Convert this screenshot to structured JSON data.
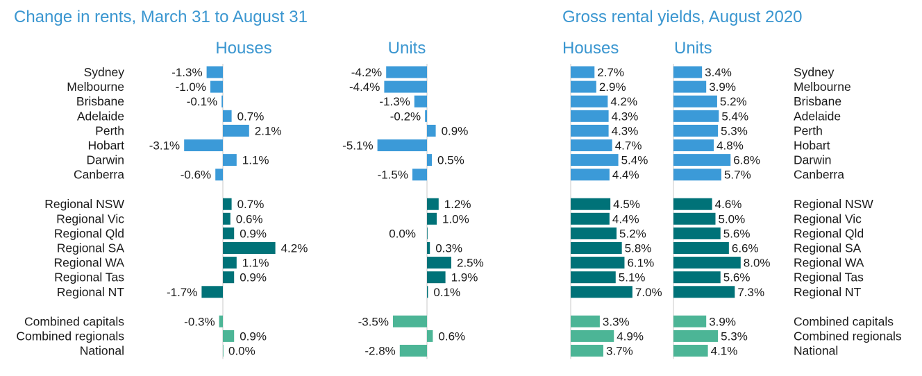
{
  "colors": {
    "capital": "#3b9ad8",
    "regional": "#007278",
    "combined": "#4cb596",
    "title": "#3a96d0",
    "axis": "#c9c9c9"
  },
  "labels": {
    "change_title": "Change in rents, March 31 to August 31",
    "yield_title": "Gross rental yields, August 2020",
    "change_houses": "Houses",
    "change_units": "Units",
    "yield_houses": "Houses",
    "yield_units": "Units"
  },
  "chart_data": [
    {
      "type": "bar",
      "orientation": "horizontal",
      "title": "Change in rents, March 31 to August 31",
      "categories": [
        "Sydney",
        "Melbourne",
        "Brisbane",
        "Adelaide",
        "Perth",
        "Hobart",
        "Darwin",
        "Canberra",
        "Regional NSW",
        "Regional Vic",
        "Regional Qld",
        "Regional SA",
        "Regional WA",
        "Regional Tas",
        "Regional NT",
        "Combined capitals",
        "Combined regionals",
        "National"
      ],
      "groups": [
        "capital",
        "capital",
        "capital",
        "capital",
        "capital",
        "capital",
        "capital",
        "capital",
        "regional",
        "regional",
        "regional",
        "regional",
        "regional",
        "regional",
        "regional",
        "combined",
        "combined",
        "combined"
      ],
      "series": [
        {
          "name": "Houses",
          "values": [
            -1.3,
            -1.0,
            -0.1,
            0.7,
            2.1,
            -3.1,
            1.1,
            -0.6,
            0.7,
            0.6,
            0.9,
            4.2,
            1.1,
            0.9,
            -1.7,
            -0.3,
            0.9,
            0.0
          ],
          "labels": [
            "-1.3%",
            "-1.0%",
            "-0.1%",
            "0.7%",
            "2.1%",
            "-3.1%",
            "1.1%",
            "-0.6%",
            "0.7%",
            "0.6%",
            "0.9%",
            "4.2%",
            "1.1%",
            "0.9%",
            "-1.7%",
            "-0.3%",
            "0.9%",
            "0.0%"
          ]
        },
        {
          "name": "Units",
          "values": [
            -4.2,
            -4.4,
            -1.3,
            -0.2,
            0.9,
            -5.1,
            0.5,
            -1.5,
            1.2,
            1.0,
            0.0,
            0.3,
            2.5,
            1.9,
            0.1,
            -3.5,
            0.6,
            -2.8
          ],
          "labels": [
            "-4.2%",
            "-4.4%",
            "-1.3%",
            "-0.2%",
            "0.9%",
            "-5.1%",
            "0.5%",
            "-1.5%",
            "1.2%",
            "1.0%",
            "0.0%",
            "0.3%",
            "2.5%",
            "1.9%",
            "0.1%",
            "-3.5%",
            "0.6%",
            "-2.8%"
          ]
        }
      ],
      "unit": "%"
    },
    {
      "type": "bar",
      "orientation": "horizontal",
      "title": "Gross rental yields, August 2020",
      "categories": [
        "Sydney",
        "Melbourne",
        "Brisbane",
        "Adelaide",
        "Perth",
        "Hobart",
        "Darwin",
        "Canberra",
        "Regional NSW",
        "Regional Vic",
        "Regional Qld",
        "Regional SA",
        "Regional WA",
        "Regional Tas",
        "Regional NT",
        "Combined capitals",
        "Combined regionals",
        "National"
      ],
      "groups": [
        "capital",
        "capital",
        "capital",
        "capital",
        "capital",
        "capital",
        "capital",
        "capital",
        "regional",
        "regional",
        "regional",
        "regional",
        "regional",
        "regional",
        "regional",
        "combined",
        "combined",
        "combined"
      ],
      "series": [
        {
          "name": "Houses",
          "values": [
            2.7,
            2.9,
            4.2,
            4.3,
            4.3,
            4.7,
            5.4,
            4.4,
            4.5,
            4.4,
            5.2,
            5.8,
            6.1,
            5.1,
            7.0,
            3.3,
            4.9,
            3.7
          ],
          "labels": [
            "2.7%",
            "2.9%",
            "4.2%",
            "4.3%",
            "4.3%",
            "4.7%",
            "5.4%",
            "4.4%",
            "4.5%",
            "4.4%",
            "5.2%",
            "5.8%",
            "6.1%",
            "5.1%",
            "7.0%",
            "3.3%",
            "4.9%",
            "3.7%"
          ]
        },
        {
          "name": "Units",
          "values": [
            3.4,
            3.9,
            5.2,
            5.4,
            5.3,
            4.8,
            6.8,
            5.7,
            4.6,
            5.0,
            5.6,
            6.6,
            8.0,
            5.6,
            7.3,
            3.9,
            5.3,
            4.1
          ],
          "labels": [
            "3.4%",
            "3.9%",
            "5.2%",
            "5.4%",
            "5.3%",
            "4.8%",
            "6.8%",
            "5.7%",
            "4.6%",
            "5.0%",
            "5.6%",
            "6.6%",
            "8.0%",
            "5.6%",
            "7.3%",
            "3.9%",
            "5.3%",
            "4.1%"
          ]
        }
      ],
      "unit": "%"
    }
  ]
}
